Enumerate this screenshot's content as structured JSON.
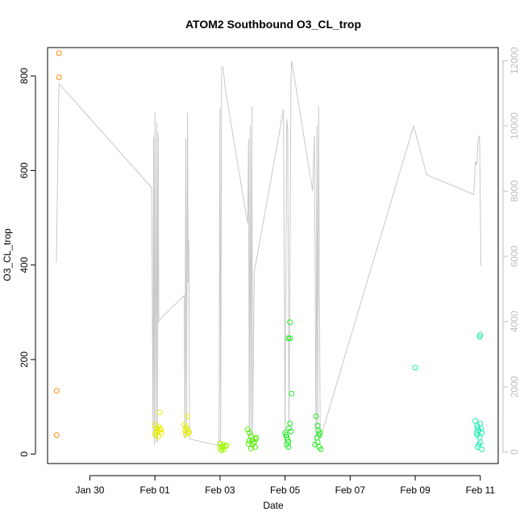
{
  "chart_data": {
    "type": "scatter",
    "title": "ATOM2 Southbound O3_CL_trop",
    "xlabel": "Date",
    "ylabel": "O3_CL_trop",
    "x_ticks": [
      {
        "day": 30,
        "label": "Jan 30"
      },
      {
        "day": 32,
        "label": "Feb 01"
      },
      {
        "day": 34,
        "label": "Feb 03"
      },
      {
        "day": 36,
        "label": "Feb 05"
      },
      {
        "day": 38,
        "label": "Feb 07"
      },
      {
        "day": 40,
        "label": "Feb 09"
      },
      {
        "day": 42,
        "label": "Feb 11"
      }
    ],
    "xlim": [
      28.7,
      42.55
    ],
    "ylim": [
      -20,
      860
    ],
    "y_ticks": [
      0,
      200,
      400,
      600,
      800
    ],
    "y2lim": [
      -350,
      12400
    ],
    "y2_ticks": [
      0,
      2000,
      4000,
      6000,
      8000,
      10000,
      12000
    ],
    "grid": false,
    "point_series": [
      {
        "color": "#ff8c00",
        "points": [
          [
            29.05,
            848
          ],
          [
            29.05,
            797
          ],
          [
            28.98,
            134
          ],
          [
            28.98,
            40
          ]
        ]
      },
      {
        "color": "#e6ee00",
        "points": [
          [
            32.0,
            62
          ],
          [
            32.05,
            55
          ],
          [
            32.08,
            50
          ],
          [
            32.1,
            47
          ],
          [
            32.03,
            44
          ],
          [
            32.12,
            58
          ],
          [
            32.15,
            53
          ],
          [
            32.0,
            40
          ],
          [
            32.1,
            37
          ],
          [
            32.15,
            88
          ],
          [
            32.2,
            45
          ],
          [
            32.18,
            52
          ],
          [
            32.9,
            62
          ],
          [
            32.95,
            57
          ],
          [
            33.0,
            52
          ],
          [
            33.05,
            47
          ],
          [
            32.95,
            42
          ],
          [
            33.0,
            80
          ],
          [
            33.02,
            44
          ],
          [
            32.93,
            50
          ]
        ]
      },
      {
        "color": "#9ff400",
        "points": [
          [
            34.0,
            12
          ],
          [
            34.05,
            16
          ],
          [
            34.1,
            20
          ],
          [
            34.15,
            17
          ],
          [
            34.08,
            14
          ],
          [
            34.2,
            18
          ],
          [
            34.0,
            22
          ],
          [
            34.12,
            10
          ],
          [
            34.05,
            8
          ]
        ]
      },
      {
        "color": "#54f000",
        "points": [
          [
            34.85,
            52
          ],
          [
            34.9,
            45
          ],
          [
            34.95,
            38
          ],
          [
            35.0,
            30
          ],
          [
            35.05,
            25
          ],
          [
            35.1,
            32
          ],
          [
            34.9,
            28
          ],
          [
            35.0,
            20
          ],
          [
            35.08,
            15
          ],
          [
            34.95,
            12
          ],
          [
            35.1,
            35
          ],
          [
            34.88,
            22
          ]
        ]
      },
      {
        "color": "#22ec22",
        "points": [
          [
            36.0,
            45
          ],
          [
            36.03,
            40
          ],
          [
            36.05,
            35
          ],
          [
            36.08,
            30
          ],
          [
            36.1,
            25
          ],
          [
            36.05,
            20
          ],
          [
            36.1,
            15
          ],
          [
            36.12,
            55
          ],
          [
            36.15,
            65
          ],
          [
            36.18,
            48
          ],
          [
            36.1,
            245
          ],
          [
            36.15,
            245
          ],
          [
            36.15,
            279
          ],
          [
            36.2,
            128
          ],
          [
            36.95,
            80
          ],
          [
            37.0,
            60
          ],
          [
            37.02,
            50
          ],
          [
            37.05,
            40
          ],
          [
            36.98,
            35
          ],
          [
            37.0,
            25
          ],
          [
            36.92,
            20
          ],
          [
            37.05,
            15
          ],
          [
            37.1,
            10
          ],
          [
            37.08,
            45
          ]
        ]
      },
      {
        "color": "#1cecb0",
        "points": [
          [
            40.0,
            183
          ],
          [
            41.85,
            70
          ],
          [
            41.9,
            60
          ],
          [
            41.92,
            55
          ],
          [
            41.95,
            50
          ],
          [
            41.88,
            45
          ],
          [
            41.9,
            40
          ],
          [
            41.98,
            35
          ],
          [
            42.0,
            25
          ],
          [
            41.95,
            20
          ],
          [
            41.92,
            15
          ],
          [
            42.05,
            10
          ],
          [
            42.0,
            65
          ],
          [
            41.98,
            248
          ],
          [
            42.0,
            252
          ],
          [
            42.02,
            55
          ],
          [
            42.05,
            45
          ]
        ]
      }
    ],
    "line_series": {
      "axis": "right",
      "color": "#c8c8c8",
      "points": [
        [
          28.97,
          5800
        ],
        [
          29.05,
          11300
        ],
        [
          31.9,
          8100
        ],
        [
          31.94,
          600
        ],
        [
          31.96,
          9650
        ],
        [
          31.98,
          200
        ],
        [
          32.0,
          10400
        ],
        [
          32.03,
          300
        ],
        [
          32.06,
          10100
        ],
        [
          32.08,
          300
        ],
        [
          32.1,
          9800
        ],
        [
          32.12,
          4000
        ],
        [
          32.18,
          4100
        ],
        [
          32.9,
          4800
        ],
        [
          32.92,
          400
        ],
        [
          32.95,
          9600
        ],
        [
          32.97,
          500
        ],
        [
          33.0,
          10400
        ],
        [
          33.02,
          5200
        ],
        [
          33.04,
          6500
        ],
        [
          33.06,
          400
        ],
        [
          33.97,
          200
        ],
        [
          34.0,
          10550
        ],
        [
          34.02,
          300
        ],
        [
          34.05,
          11800
        ],
        [
          34.1,
          11800
        ],
        [
          34.15,
          11200
        ],
        [
          34.85,
          7000
        ],
        [
          34.88,
          9600
        ],
        [
          34.9,
          300
        ],
        [
          34.93,
          10000
        ],
        [
          34.95,
          600
        ],
        [
          34.98,
          10600
        ],
        [
          35.0,
          500
        ],
        [
          35.05,
          5500
        ],
        [
          35.95,
          10500
        ],
        [
          36.0,
          300
        ],
        [
          36.05,
          10200
        ],
        [
          36.08,
          9900
        ],
        [
          36.12,
          400
        ],
        [
          36.18,
          11300
        ],
        [
          36.2,
          12000
        ],
        [
          36.85,
          8000
        ],
        [
          36.9,
          9700
        ],
        [
          36.95,
          400
        ],
        [
          36.98,
          10000
        ],
        [
          37.0,
          500
        ],
        [
          37.03,
          10600
        ],
        [
          37.05,
          6000
        ],
        [
          37.08,
          400
        ],
        [
          39.95,
          10000
        ],
        [
          40.35,
          8500
        ],
        [
          41.8,
          7900
        ],
        [
          41.85,
          8900
        ],
        [
          41.88,
          8800
        ],
        [
          41.9,
          9000
        ],
        [
          41.93,
          9500
        ],
        [
          41.96,
          9700
        ],
        [
          41.98,
          9500
        ],
        [
          42.0,
          7500
        ],
        [
          42.02,
          5700
        ]
      ]
    }
  }
}
